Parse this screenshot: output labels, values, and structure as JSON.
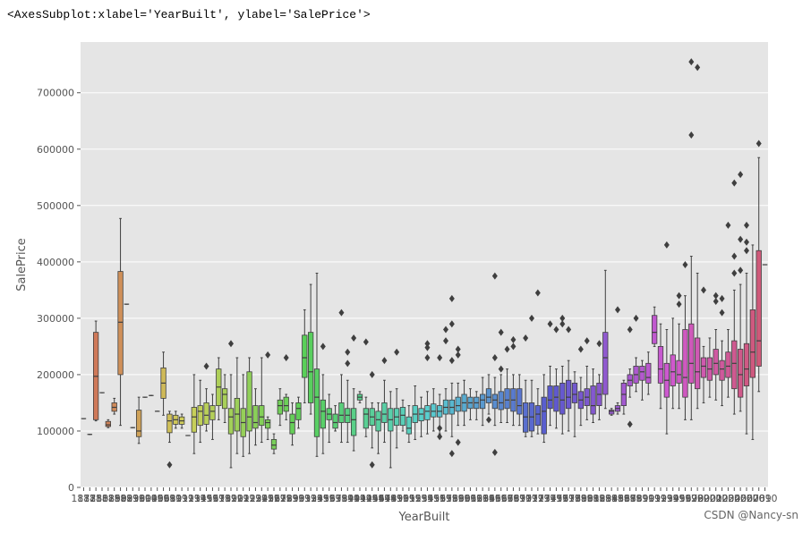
{
  "header": "<AxesSubplot:xlabel='YearBuilt', ylabel='SalePrice'>",
  "watermark": "CSDN @Nancy-sn",
  "chart_data": {
    "type": "box",
    "xlabel": "YearBuilt",
    "ylabel": "SalePrice",
    "palette": "husl",
    "grid": true,
    "ylim": [
      0,
      790000
    ],
    "yticks": [
      0,
      100000,
      200000,
      300000,
      400000,
      500000,
      600000,
      700000
    ],
    "categories": [
      1872,
      1875,
      1880,
      1882,
      1885,
      1890,
      1892,
      1893,
      1898,
      1900,
      1904,
      1905,
      1906,
      1908,
      1910,
      1911,
      1912,
      1913,
      1914,
      1915,
      1916,
      1917,
      1918,
      1919,
      1920,
      1921,
      1922,
      1923,
      1924,
      1925,
      1926,
      1927,
      1928,
      1929,
      1930,
      1931,
      1932,
      1934,
      1935,
      1936,
      1937,
      1938,
      1939,
      1940,
      1941,
      1942,
      1945,
      1946,
      1947,
      1948,
      1949,
      1950,
      1951,
      1952,
      1953,
      1954,
      1955,
      1956,
      1957,
      1958,
      1959,
      1960,
      1961,
      1962,
      1963,
      1964,
      1965,
      1966,
      1967,
      1968,
      1969,
      1970,
      1971,
      1972,
      1973,
      1974,
      1975,
      1976,
      1977,
      1978,
      1979,
      1980,
      1981,
      1982,
      1983,
      1984,
      1985,
      1986,
      1987,
      1988,
      1989,
      1990,
      1991,
      1992,
      1993,
      1994,
      1995,
      1996,
      1997,
      1998,
      1999,
      2000,
      2001,
      2002,
      2003,
      2004,
      2005,
      2006,
      2007,
      2008,
      2009,
      2010
    ],
    "boxes": [
      [
        122000,
        122000,
        122000,
        122000,
        122000
      ],
      [
        94000,
        94000,
        94000,
        94000,
        94000
      ],
      [
        118000,
        120000,
        197000,
        275000,
        295000
      ],
      [
        168000,
        168000,
        168000,
        168000,
        168000
      ],
      [
        106000,
        108000,
        111000,
        117000,
        120000
      ],
      [
        130000,
        135000,
        142000,
        150000,
        158000
      ],
      [
        110000,
        200000,
        293000,
        383000,
        477000
      ],
      [
        325000,
        325000,
        325000,
        325000,
        325000
      ],
      [
        106000,
        106000,
        106000,
        106000,
        106000
      ],
      [
        78000,
        90000,
        100000,
        137000,
        160000
      ],
      [
        160000,
        160000,
        160000,
        160000,
        160000
      ],
      [
        163000,
        163000,
        163000,
        163000,
        163000
      ],
      [
        135000,
        135000,
        135000,
        135000,
        135000
      ],
      [
        128000,
        158000,
        185000,
        212000,
        240000
      ],
      [
        80000,
        97000,
        118000,
        130000,
        135000
      ],
      [
        105000,
        112000,
        120000,
        128000,
        135000
      ],
      [
        105000,
        112000,
        118000,
        125000,
        130000
      ],
      [
        92000,
        92000,
        92000,
        92000,
        92000
      ],
      [
        60000,
        98000,
        125000,
        142000,
        200000
      ],
      [
        80000,
        110000,
        135000,
        145000,
        190000
      ],
      [
        100000,
        112000,
        128000,
        150000,
        175000
      ],
      [
        85000,
        120000,
        135000,
        145000,
        165000
      ],
      [
        120000,
        145000,
        178000,
        210000,
        230000
      ],
      [
        115000,
        140000,
        165000,
        175000,
        200000
      ],
      [
        35000,
        95000,
        125000,
        140000,
        200000
      ],
      [
        60000,
        100000,
        130000,
        158000,
        230000
      ],
      [
        55000,
        90000,
        115000,
        140000,
        200000
      ],
      [
        60000,
        100000,
        125000,
        205000,
        230000
      ],
      [
        75000,
        105000,
        115000,
        145000,
        175000
      ],
      [
        80000,
        110000,
        125000,
        145000,
        230000
      ],
      [
        85000,
        105000,
        115000,
        120000,
        125000
      ],
      [
        60000,
        68000,
        75000,
        85000,
        95000
      ],
      [
        110000,
        130000,
        145000,
        155000,
        175000
      ],
      [
        120000,
        135000,
        145000,
        160000,
        165000
      ],
      [
        75000,
        95000,
        115000,
        130000,
        150000
      ],
      [
        105000,
        120000,
        140000,
        150000,
        160000
      ],
      [
        150000,
        195000,
        230000,
        270000,
        315000
      ],
      [
        130000,
        150000,
        205000,
        275000,
        360000
      ],
      [
        55000,
        90000,
        160000,
        210000,
        380000
      ],
      [
        60000,
        105000,
        135000,
        155000,
        200000
      ],
      [
        80000,
        120000,
        130000,
        140000,
        165000
      ],
      [
        100000,
        105000,
        115000,
        130000,
        145000
      ],
      [
        80000,
        115000,
        128000,
        150000,
        200000
      ],
      [
        80000,
        115000,
        128000,
        140000,
        190000
      ],
      [
        65000,
        92000,
        120000,
        140000,
        175000
      ],
      [
        150000,
        155000,
        160000,
        165000,
        170000
      ],
      [
        90000,
        105000,
        130000,
        140000,
        160000
      ],
      [
        70000,
        110000,
        125000,
        140000,
        150000
      ],
      [
        60000,
        100000,
        120000,
        135000,
        150000
      ],
      [
        80000,
        115000,
        130000,
        150000,
        190000
      ],
      [
        35000,
        100000,
        120000,
        140000,
        170000
      ],
      [
        70000,
        110000,
        125000,
        140000,
        175000
      ],
      [
        100000,
        110000,
        128000,
        142000,
        155000
      ],
      [
        80000,
        95000,
        105000,
        125000,
        145000
      ],
      [
        85000,
        115000,
        130000,
        145000,
        180000
      ],
      [
        90000,
        118000,
        130000,
        140000,
        160000
      ],
      [
        95000,
        120000,
        135000,
        145000,
        170000
      ],
      [
        100000,
        125000,
        135000,
        148000,
        175000
      ],
      [
        95000,
        125000,
        135000,
        145000,
        165000
      ],
      [
        100000,
        130000,
        142000,
        155000,
        175000
      ],
      [
        90000,
        130000,
        142000,
        155000,
        185000
      ],
      [
        110000,
        135000,
        145000,
        160000,
        185000
      ],
      [
        110000,
        135000,
        150000,
        165000,
        190000
      ],
      [
        120000,
        140000,
        150000,
        160000,
        175000
      ],
      [
        120000,
        140000,
        150000,
        160000,
        170000
      ],
      [
        110000,
        140000,
        155000,
        165000,
        195000
      ],
      [
        130000,
        150000,
        160000,
        175000,
        200000
      ],
      [
        110000,
        140000,
        155000,
        165000,
        195000
      ],
      [
        115000,
        138000,
        150000,
        170000,
        200000
      ],
      [
        115000,
        140000,
        155000,
        175000,
        210000
      ],
      [
        110000,
        135000,
        155000,
        175000,
        200000
      ],
      [
        110000,
        130000,
        145000,
        175000,
        200000
      ],
      [
        90000,
        98000,
        125000,
        150000,
        190000
      ],
      [
        90000,
        100000,
        125000,
        150000,
        190000
      ],
      [
        95000,
        110000,
        130000,
        145000,
        175000
      ],
      [
        80000,
        95000,
        135000,
        160000,
        200000
      ],
      [
        110000,
        140000,
        155000,
        180000,
        215000
      ],
      [
        105000,
        135000,
        160000,
        180000,
        210000
      ],
      [
        95000,
        130000,
        155000,
        185000,
        215000
      ],
      [
        100000,
        140000,
        160000,
        190000,
        225000
      ],
      [
        90000,
        150000,
        165000,
        185000,
        205000
      ],
      [
        110000,
        140000,
        155000,
        170000,
        195000
      ],
      [
        120000,
        145000,
        160000,
        175000,
        215000
      ],
      [
        115000,
        130000,
        145000,
        180000,
        210000
      ],
      [
        120000,
        145000,
        165000,
        185000,
        200000
      ],
      [
        140000,
        165000,
        230000,
        275000,
        385000
      ],
      [
        128000,
        130000,
        135000,
        137000,
        140000
      ],
      [
        130000,
        135000,
        140000,
        145000,
        150000
      ],
      [
        130000,
        145000,
        165000,
        185000,
        190000
      ],
      [
        160000,
        180000,
        190000,
        200000,
        210000
      ],
      [
        170000,
        185000,
        200000,
        215000,
        230000
      ],
      [
        155000,
        190000,
        205000,
        215000,
        225000
      ],
      [
        165000,
        185000,
        195000,
        220000,
        240000
      ],
      [
        250000,
        255000,
        275000,
        305000,
        320000
      ],
      [
        140000,
        185000,
        210000,
        250000,
        290000
      ],
      [
        95000,
        160000,
        190000,
        220000,
        280000
      ],
      [
        140000,
        180000,
        205000,
        235000,
        300000
      ],
      [
        140000,
        185000,
        200000,
        225000,
        290000
      ],
      [
        120000,
        160000,
        195000,
        280000,
        340000
      ],
      [
        120000,
        185000,
        220000,
        290000,
        410000
      ],
      [
        140000,
        175000,
        205000,
        265000,
        380000
      ],
      [
        150000,
        195000,
        215000,
        230000,
        250000
      ],
      [
        160000,
        190000,
        210000,
        230000,
        265000
      ],
      [
        155000,
        200000,
        220000,
        245000,
        280000
      ],
      [
        145000,
        190000,
        210000,
        225000,
        260000
      ],
      [
        160000,
        195000,
        215000,
        240000,
        280000
      ],
      [
        130000,
        175000,
        220000,
        260000,
        350000
      ],
      [
        135000,
        160000,
        200000,
        245000,
        360000
      ],
      [
        95000,
        180000,
        210000,
        255000,
        380000
      ],
      [
        85000,
        195000,
        240000,
        315000,
        430000
      ],
      [
        170000,
        215000,
        260000,
        420000,
        585000
      ],
      [
        395000,
        395000,
        395000,
        395000,
        395000
      ]
    ],
    "fliers": [
      [],
      [],
      [],
      [],
      [],
      [],
      [],
      [],
      [],
      [],
      [],
      [],
      [],
      [],
      [
        40000
      ],
      [],
      [],
      [],
      [],
      [],
      [
        215000
      ],
      [],
      [],
      [],
      [
        255000
      ],
      [],
      [],
      [],
      [],
      [],
      [
        235000
      ],
      [],
      [],
      [
        230000
      ],
      [],
      [],
      [],
      [],
      [],
      [
        250000
      ],
      [],
      [],
      [
        310000
      ],
      [
        240000,
        220000
      ],
      [
        265000
      ],
      [],
      [
        258000
      ],
      [
        40000,
        200000
      ],
      [],
      [
        225000
      ],
      [],
      [
        240000
      ],
      [],
      [],
      [],
      [],
      [
        230000,
        255000,
        248000
      ],
      [],
      [
        90000,
        105000,
        230000
      ],
      [
        260000,
        280000
      ],
      [
        60000,
        225000,
        290000,
        335000
      ],
      [
        80000,
        235000,
        245000
      ],
      [],
      [],
      [],
      [],
      [
        120000
      ],
      [
        62000,
        375000,
        230000
      ],
      [
        275000,
        210000
      ],
      [
        245000
      ],
      [
        250000,
        262000
      ],
      [],
      [
        265000
      ],
      [
        300000
      ],
      [
        345000
      ],
      [],
      [
        290000
      ],
      [
        280000
      ],
      [
        300000,
        290000
      ],
      [
        280000
      ],
      [],
      [
        245000
      ],
      [
        260000
      ],
      [],
      [
        255000
      ],
      [],
      [],
      [
        315000
      ],
      [],
      [
        280000,
        112000
      ],
      [
        300000
      ],
      [],
      [],
      [],
      [],
      [
        430000
      ],
      [],
      [
        340000,
        325000
      ],
      [
        395000
      ],
      [
        625000,
        755000
      ],
      [
        745000
      ],
      [
        350000
      ],
      [],
      [
        330000,
        340000
      ],
      [
        310000,
        335000
      ],
      [
        465000
      ],
      [
        380000,
        410000,
        540000
      ],
      [
        440000,
        385000,
        555000
      ],
      [
        420000,
        435000,
        465000
      ],
      [],
      [
        610000
      ],
      []
    ]
  }
}
